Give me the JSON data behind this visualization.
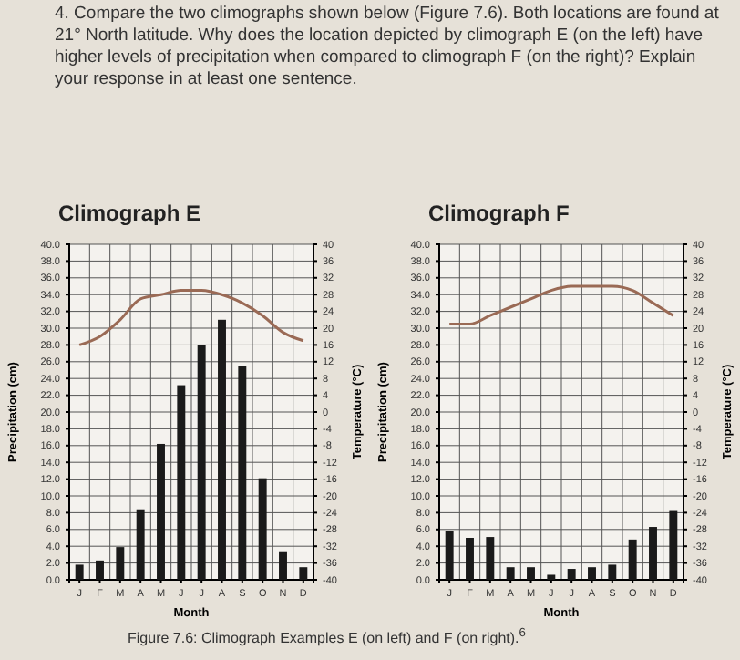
{
  "chart_data": [
    {
      "type": "bar",
      "title": "Climograph E",
      "xlabel": "Month",
      "ylabel": "Precipitation (cm)",
      "y2label": "Temperature (°C)",
      "annotations": [
        "4. Compare the two climographs shown below (Figure 7.6). Both locations are found at 21° North latitude. Why does the location depicted by climograph E (on the left) have higher levels of precipitation when compared to climograph F (on the right)? Explain your response in at least one sentence."
      ],
      "categories": [
        "J",
        "F",
        "M",
        "A",
        "M",
        "J",
        "J",
        "A",
        "S",
        "O",
        "N",
        "D"
      ],
      "series": [
        {
          "color": "#1a1a1a",
          "values": [
            1.8,
            2.3,
            3.9,
            8.4,
            16.2,
            23.2,
            28.0,
            31.0,
            25.5,
            12.1,
            3.4,
            1.5
          ]
        },
        {
          "type": "line",
          "axis": "y2",
          "color": "#9a6a55",
          "values": [
            16,
            18,
            22,
            27,
            28,
            29,
            29,
            28,
            26,
            23,
            19,
            17
          ]
        }
      ],
      "ylim": [
        0,
        40
      ],
      "yticks": [
        {
          "value": 0,
          "label": "0.0"
        },
        {
          "value": 2,
          "label": "2.0"
        },
        {
          "value": 4,
          "label": "4.0"
        },
        {
          "value": 6,
          "label": "6.0"
        },
        {
          "value": 8,
          "label": "8.0"
        },
        {
          "value": 10,
          "label": "10.0"
        },
        {
          "value": 12,
          "label": "12.0"
        },
        {
          "value": 14,
          "label": "14.0"
        },
        {
          "value": 16,
          "label": "16.0"
        },
        {
          "value": 18,
          "label": "18.0"
        },
        {
          "value": 20,
          "label": "20.0"
        },
        {
          "value": 22,
          "label": "22.0"
        },
        {
          "value": 24,
          "label": "24.0"
        },
        {
          "value": 26,
          "label": "26.0"
        },
        {
          "value": 28,
          "label": "28.0"
        },
        {
          "value": 30,
          "label": "30.0"
        },
        {
          "value": 32,
          "label": "32.0"
        },
        {
          "value": 34,
          "label": "34.0"
        },
        {
          "value": 36,
          "label": "36.0"
        },
        {
          "value": 38,
          "label": "38.0"
        },
        {
          "value": 40,
          "label": "40.0"
        }
      ],
      "y2lim": [
        -40,
        40
      ],
      "y2ticks": [
        -40,
        -36,
        -32,
        -28,
        -24,
        -20,
        -16,
        -12,
        -8,
        -4,
        0,
        4,
        8,
        12,
        16,
        20,
        24,
        28,
        32,
        36,
        40
      ],
      "grid": true,
      "marker": "none"
    },
    {
      "type": "bar",
      "title": "Climograph F",
      "xlabel": "Month",
      "ylabel": "Precipitation (cm)",
      "y2label": "Temperature (°C)",
      "annotations": [
        "Figure 7.6: Climograph Examples E (on left) and F (on right).$^{6}$"
      ],
      "categories": [
        "J",
        "F",
        "M",
        "A",
        "M",
        "J",
        "J",
        "A",
        "S",
        "O",
        "N",
        "D"
      ],
      "series": [
        {
          "color": "#1a1a1a",
          "values": [
            5.8,
            5.0,
            5.1,
            1.5,
            1.5,
            0.6,
            1.3,
            1.5,
            1.8,
            4.8,
            6.3,
            8.2
          ]
        },
        {
          "type": "line",
          "axis": "y2",
          "color": "#9a6a55",
          "values": [
            21,
            21,
            23,
            25,
            27,
            29,
            30,
            30,
            30,
            29,
            26,
            23
          ]
        }
      ],
      "ylim": [
        0,
        40
      ],
      "yticks": [
        {
          "value": 0,
          "label": "0.0"
        },
        {
          "value": 2,
          "label": "2.0"
        },
        {
          "value": 4,
          "label": "4.0"
        },
        {
          "value": 6,
          "label": "6.0"
        },
        {
          "value": 8,
          "label": "8.0"
        },
        {
          "value": 10,
          "label": "10.0"
        },
        {
          "value": 12,
          "label": "12.0"
        },
        {
          "value": 14,
          "label": "14.0"
        },
        {
          "value": 16,
          "label": "16.0"
        },
        {
          "value": 18,
          "label": "18.0"
        },
        {
          "value": 20,
          "label": "20.0"
        },
        {
          "value": 22,
          "label": "22.0"
        },
        {
          "value": 24,
          "label": "24.0"
        },
        {
          "value": 26,
          "label": "26.0"
        },
        {
          "value": 28,
          "label": "28.0"
        },
        {
          "value": 30,
          "label": "30.0"
        },
        {
          "value": 32,
          "label": "32.0"
        },
        {
          "value": 34,
          "label": "34.0"
        },
        {
          "value": 36,
          "label": "36.0"
        },
        {
          "value": 38,
          "label": "38.0"
        },
        {
          "value": 40,
          "label": "40.0"
        }
      ],
      "y2lim": [
        -40,
        40
      ],
      "y2ticks": [
        -40,
        -36,
        -32,
        -28,
        -24,
        -20,
        -16,
        -12,
        -8,
        -4,
        0,
        4,
        8,
        12,
        16,
        20,
        24,
        28,
        32,
        36,
        40
      ],
      "grid": true,
      "marker": "none"
    }
  ]
}
